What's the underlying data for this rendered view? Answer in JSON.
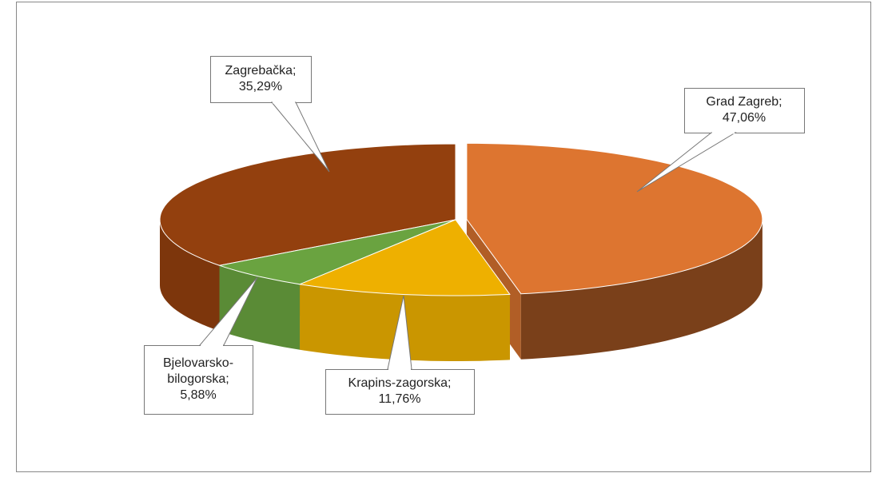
{
  "chart_data": {
    "type": "pie3d",
    "categories": [
      "Grad Zagreb",
      "Krapins-zagorska",
      "Bjelovarsko-bilogorska",
      "Zagrebačka"
    ],
    "values": [
      47.06,
      11.76,
      5.88,
      35.29
    ],
    "value_labels": [
      "47,06%",
      "11,76%",
      "5,88%",
      "35,29%"
    ],
    "label_separator": ";",
    "colors": [
      "#dd7530",
      "#eeb000",
      "#6aa340",
      "#93400e"
    ]
  }
}
